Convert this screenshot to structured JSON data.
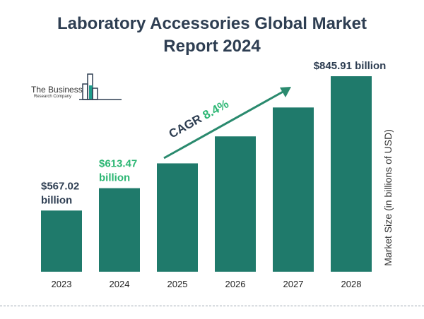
{
  "header": {
    "title_line1": "Laboratory Accessories Global Market",
    "title_line2": "Report 2024"
  },
  "logo": {
    "name": "The Business",
    "subtitle": "Research Company"
  },
  "chart_data": {
    "type": "bar",
    "title": "Laboratory Accessories Global Market Report 2024",
    "categories": [
      "2023",
      "2024",
      "2025",
      "2026",
      "2027",
      "2028"
    ],
    "values": [
      567.02,
      613.47,
      665.0,
      721.0,
      781.0,
      845.91
    ],
    "value_labels": [
      [
        "$567.02",
        "billion"
      ],
      [
        "$613.47",
        "billion"
      ],
      null,
      null,
      null,
      [
        "$845.91 billion"
      ]
    ],
    "ylabel": "Market Size (in billions of USD)",
    "xlabel": "",
    "grid": false,
    "annotation": {
      "prefix": "CAGR ",
      "value": "8.4%"
    }
  },
  "colors": {
    "bar": "#1f7a6b",
    "title": "#2e3e52",
    "label_dark": "#2e3e52",
    "label_accent": "#2bb673",
    "arrow": "#2a8a6e"
  }
}
